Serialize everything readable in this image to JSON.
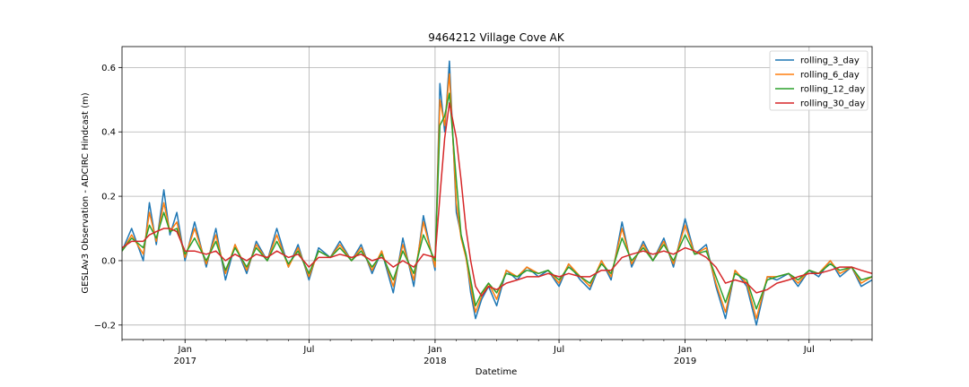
{
  "chart_data": {
    "type": "line",
    "title": "9464212 Village Cove AK",
    "xlabel": "Datetime",
    "ylabel": "GESLAv3 Observation - ADCIRC Hindcast (m)",
    "xlim": [
      "2016-10-01",
      "2019-10-01"
    ],
    "ylim": [
      -0.245,
      0.665
    ],
    "yticks": [
      -0.2,
      0.0,
      0.2,
      0.4,
      0.6
    ],
    "ytick_labels": [
      "−0.2",
      "0.0",
      "0.2",
      "0.4",
      "0.6"
    ],
    "xticks": [
      {
        "date": "2017-01-01",
        "label": "Jan",
        "sublabel": "2017",
        "major": true
      },
      {
        "date": "2017-07-01",
        "label": "Jul",
        "sublabel": "",
        "major": true
      },
      {
        "date": "2018-01-01",
        "label": "Jan",
        "sublabel": "2018",
        "major": true
      },
      {
        "date": "2018-07-01",
        "label": "Jul",
        "sublabel": "",
        "major": true
      },
      {
        "date": "2019-01-01",
        "label": "Jan",
        "sublabel": "2019",
        "major": true
      },
      {
        "date": "2019-07-01",
        "label": "Jul",
        "sublabel": "",
        "major": true
      }
    ],
    "grid": true,
    "legend_position": "top-right",
    "x": [
      "2016-10-01",
      "2016-10-15",
      "2016-11-01",
      "2016-11-10",
      "2016-11-20",
      "2016-12-01",
      "2016-12-10",
      "2016-12-20",
      "2017-01-01",
      "2017-01-15",
      "2017-02-01",
      "2017-02-15",
      "2017-03-01",
      "2017-03-15",
      "2017-04-01",
      "2017-04-15",
      "2017-05-01",
      "2017-05-15",
      "2017-06-01",
      "2017-06-15",
      "2017-07-01",
      "2017-07-15",
      "2017-08-01",
      "2017-08-15",
      "2017-09-01",
      "2017-09-15",
      "2017-10-01",
      "2017-10-15",
      "2017-11-01",
      "2017-11-15",
      "2017-12-01",
      "2017-12-15",
      "2018-01-01",
      "2018-01-08",
      "2018-01-15",
      "2018-01-22",
      "2018-02-01",
      "2018-02-08",
      "2018-02-15",
      "2018-02-22",
      "2018-03-01",
      "2018-03-10",
      "2018-03-20",
      "2018-04-01",
      "2018-04-15",
      "2018-05-01",
      "2018-05-15",
      "2018-06-01",
      "2018-06-15",
      "2018-07-01",
      "2018-07-15",
      "2018-08-01",
      "2018-08-15",
      "2018-09-01",
      "2018-09-15",
      "2018-10-01",
      "2018-10-15",
      "2018-11-01",
      "2018-11-15",
      "2018-12-01",
      "2018-12-15",
      "2019-01-01",
      "2019-01-15",
      "2019-02-01",
      "2019-02-15",
      "2019-03-01",
      "2019-03-15",
      "2019-04-01",
      "2019-04-15",
      "2019-05-01",
      "2019-05-15",
      "2019-06-01",
      "2019-06-15",
      "2019-07-01",
      "2019-07-15",
      "2019-08-01",
      "2019-08-15",
      "2019-09-01",
      "2019-09-15",
      "2019-10-01"
    ],
    "series": [
      {
        "name": "rolling_3_day",
        "color": "#1f77b4",
        "values": [
          0.03,
          0.1,
          0.0,
          0.18,
          0.05,
          0.22,
          0.08,
          0.15,
          0.0,
          0.12,
          -0.02,
          0.1,
          -0.06,
          0.05,
          -0.04,
          0.06,
          0.0,
          0.1,
          -0.02,
          0.05,
          -0.06,
          0.04,
          0.01,
          0.06,
          0.0,
          0.05,
          -0.04,
          0.03,
          -0.1,
          0.07,
          -0.08,
          0.14,
          -0.03,
          0.55,
          0.4,
          0.62,
          0.15,
          0.08,
          0.02,
          -0.1,
          -0.18,
          -0.12,
          -0.08,
          -0.14,
          -0.03,
          -0.06,
          -0.02,
          -0.05,
          -0.03,
          -0.08,
          -0.01,
          -0.06,
          -0.09,
          0.0,
          -0.06,
          0.12,
          -0.02,
          0.06,
          0.0,
          0.07,
          -0.02,
          0.13,
          0.02,
          0.05,
          -0.08,
          -0.18,
          -0.03,
          -0.08,
          -0.2,
          -0.05,
          -0.06,
          -0.04,
          -0.08,
          -0.03,
          -0.05,
          0.0,
          -0.05,
          -0.02,
          -0.08,
          -0.06
        ]
      },
      {
        "name": "rolling_6_day",
        "color": "#ff7f0e",
        "values": [
          0.03,
          0.08,
          0.02,
          0.15,
          0.06,
          0.18,
          0.09,
          0.12,
          0.01,
          0.1,
          -0.01,
          0.08,
          -0.04,
          0.05,
          -0.03,
          0.05,
          0.0,
          0.08,
          -0.02,
          0.04,
          -0.05,
          0.03,
          0.01,
          0.05,
          0.0,
          0.04,
          -0.03,
          0.03,
          -0.08,
          0.05,
          -0.06,
          0.12,
          -0.02,
          0.5,
          0.42,
          0.58,
          0.18,
          0.07,
          0.01,
          -0.08,
          -0.16,
          -0.11,
          -0.07,
          -0.12,
          -0.03,
          -0.05,
          -0.02,
          -0.04,
          -0.03,
          -0.07,
          -0.01,
          -0.05,
          -0.08,
          0.0,
          -0.05,
          0.1,
          -0.01,
          0.05,
          0.0,
          0.06,
          -0.01,
          0.11,
          0.02,
          0.04,
          -0.07,
          -0.16,
          -0.03,
          -0.07,
          -0.18,
          -0.05,
          -0.05,
          -0.04,
          -0.07,
          -0.03,
          -0.04,
          0.0,
          -0.04,
          -0.02,
          -0.07,
          -0.05
        ]
      },
      {
        "name": "rolling_12_day",
        "color": "#2ca02c",
        "values": [
          0.03,
          0.07,
          0.04,
          0.11,
          0.07,
          0.15,
          0.09,
          0.1,
          0.02,
          0.07,
          0.0,
          0.06,
          -0.03,
          0.04,
          -0.02,
          0.04,
          0.0,
          0.06,
          -0.01,
          0.03,
          -0.04,
          0.03,
          0.01,
          0.04,
          0.0,
          0.03,
          -0.02,
          0.02,
          -0.06,
          0.03,
          -0.04,
          0.08,
          0.0,
          0.42,
          0.45,
          0.52,
          0.25,
          0.08,
          0.02,
          -0.06,
          -0.14,
          -0.1,
          -0.07,
          -0.1,
          -0.04,
          -0.05,
          -0.03,
          -0.04,
          -0.03,
          -0.06,
          -0.02,
          -0.05,
          -0.07,
          -0.01,
          -0.04,
          0.07,
          0.0,
          0.04,
          0.0,
          0.05,
          0.0,
          0.08,
          0.02,
          0.03,
          -0.05,
          -0.13,
          -0.04,
          -0.06,
          -0.15,
          -0.06,
          -0.05,
          -0.04,
          -0.06,
          -0.03,
          -0.04,
          -0.01,
          -0.03,
          -0.02,
          -0.06,
          -0.05
        ]
      },
      {
        "name": "rolling_30_day",
        "color": "#d62728",
        "values": [
          0.04,
          0.06,
          0.06,
          0.08,
          0.09,
          0.1,
          0.1,
          0.09,
          0.03,
          0.03,
          0.02,
          0.03,
          0.0,
          0.02,
          0.0,
          0.02,
          0.01,
          0.03,
          0.01,
          0.02,
          -0.02,
          0.01,
          0.01,
          0.02,
          0.01,
          0.02,
          0.0,
          0.01,
          -0.02,
          0.0,
          -0.02,
          0.02,
          0.01,
          0.2,
          0.38,
          0.49,
          0.38,
          0.25,
          0.1,
          0.0,
          -0.08,
          -0.11,
          -0.08,
          -0.09,
          -0.07,
          -0.06,
          -0.05,
          -0.05,
          -0.04,
          -0.05,
          -0.04,
          -0.05,
          -0.05,
          -0.03,
          -0.03,
          0.01,
          0.02,
          0.03,
          0.02,
          0.03,
          0.02,
          0.04,
          0.03,
          0.01,
          -0.02,
          -0.07,
          -0.06,
          -0.07,
          -0.1,
          -0.09,
          -0.07,
          -0.06,
          -0.05,
          -0.04,
          -0.04,
          -0.03,
          -0.02,
          -0.02,
          -0.03,
          -0.04
        ]
      }
    ]
  }
}
